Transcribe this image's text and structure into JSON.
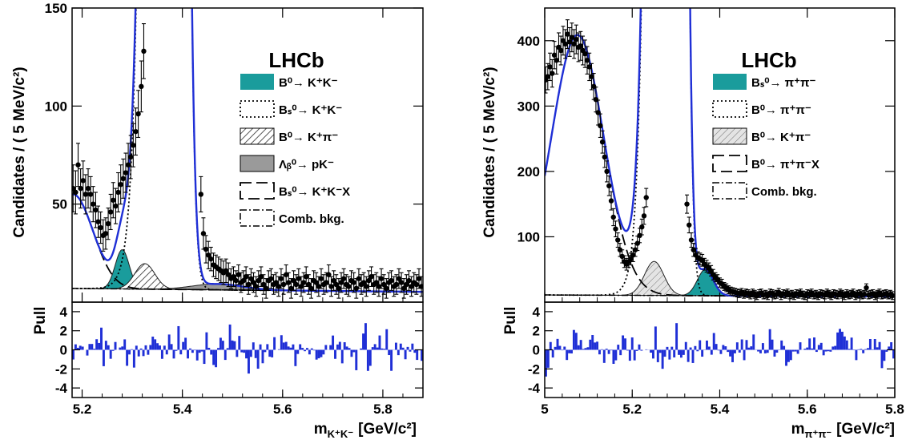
{
  "chart_data": [
    {
      "type": "scatter",
      "brand": "LHCb",
      "ylabel": "Candidates / ( 5 MeV/c²)",
      "xlabel_main": "m",
      "xlabel_sub": "K⁺K⁻",
      "xlabel_unit": "[GeV/c²]",
      "pull_label": "Pull",
      "xlim": [
        5.18,
        5.88
      ],
      "ylim": [
        0,
        150
      ],
      "pull_ylim": [
        -5,
        5
      ],
      "grid": false,
      "legend_position": "right",
      "x_ticks": [
        5.2,
        5.4,
        5.6,
        5.8
      ],
      "x_tick_labels": [
        "5.2",
        "5.4",
        "5.6",
        "5.8"
      ],
      "y_ticks": [
        50,
        100,
        150
      ],
      "y_tick_labels": [
        "50",
        "100",
        "150"
      ],
      "pull_ticks": [
        -4,
        -2,
        0,
        2,
        4
      ],
      "pull_tick_labels": [
        "-4",
        "-2",
        "0",
        "2",
        "4"
      ],
      "legend": [
        {
          "label": "B⁰→ K⁺K⁻",
          "style": "filled",
          "color": "#1a9c9c"
        },
        {
          "label": "Bₛ⁰→ K⁺K⁻",
          "style": "dotted"
        },
        {
          "label": "B⁰→ K⁺π⁻",
          "style": "hatched"
        },
        {
          "label": "Λᵦ⁰→ pK⁻",
          "style": "gray"
        },
        {
          "label": "Bₛ⁰→ K⁺K⁻X",
          "style": "long-dash"
        },
        {
          "label": "Comb. bkg.",
          "style": "dash-dot"
        }
      ],
      "peaks": {
        "bs_kk": 5.367,
        "bd_kk": 5.28,
        "bd_kpi": 5.325,
        "lambda_b": 5.47
      },
      "points": [
        [
          5.182,
          58,
          12
        ],
        [
          5.187,
          56,
          11
        ],
        [
          5.192,
          70,
          11
        ],
        [
          5.197,
          58,
          10
        ],
        [
          5.202,
          62,
          10
        ],
        [
          5.207,
          55,
          10
        ],
        [
          5.212,
          58,
          10
        ],
        [
          5.217,
          55,
          9
        ],
        [
          5.222,
          50,
          9
        ],
        [
          5.227,
          47,
          9
        ],
        [
          5.232,
          41,
          8
        ],
        [
          5.237,
          38,
          8
        ],
        [
          5.242,
          34,
          8
        ],
        [
          5.247,
          35,
          8
        ],
        [
          5.252,
          40,
          8
        ],
        [
          5.257,
          46,
          9
        ],
        [
          5.262,
          52,
          9
        ],
        [
          5.267,
          49,
          9
        ],
        [
          5.272,
          56,
          10
        ],
        [
          5.277,
          60,
          10
        ],
        [
          5.282,
          63,
          10
        ],
        [
          5.287,
          66,
          10
        ],
        [
          5.292,
          70,
          11
        ],
        [
          5.297,
          74,
          11
        ],
        [
          5.302,
          80,
          11
        ],
        [
          5.307,
          87,
          12
        ],
        [
          5.312,
          96,
          12
        ],
        [
          5.318,
          110,
          13
        ],
        [
          5.323,
          128,
          14
        ],
        [
          5.437,
          55,
          9
        ],
        [
          5.442,
          35,
          8
        ],
        [
          5.447,
          27,
          7
        ],
        [
          5.452,
          24,
          7
        ],
        [
          5.457,
          22,
          6
        ],
        [
          5.462,
          19,
          6
        ],
        [
          5.467,
          18,
          6
        ],
        [
          5.472,
          17,
          6
        ],
        [
          5.477,
          16,
          6
        ],
        [
          5.482,
          15,
          6
        ],
        [
          5.487,
          16,
          6
        ],
        [
          5.492,
          14,
          6
        ],
        [
          5.497,
          12,
          5
        ],
        [
          5.502,
          13,
          5
        ],
        [
          5.507,
          11,
          5
        ],
        [
          5.512,
          14,
          5
        ],
        [
          5.517,
          10,
          5
        ],
        [
          5.522,
          11,
          5
        ],
        [
          5.527,
          13,
          5
        ],
        [
          5.532,
          9,
          5
        ],
        [
          5.537,
          12,
          5
        ],
        [
          5.542,
          10,
          5
        ],
        [
          5.547,
          8,
          5
        ],
        [
          5.552,
          11,
          5
        ],
        [
          5.557,
          13,
          5
        ],
        [
          5.562,
          9,
          5
        ],
        [
          5.567,
          7,
          5
        ],
        [
          5.572,
          11,
          5
        ],
        [
          5.577,
          12,
          5
        ],
        [
          5.582,
          9,
          5
        ],
        [
          5.587,
          10,
          5
        ],
        [
          5.592,
          8,
          5
        ],
        [
          5.597,
          12,
          5
        ],
        [
          5.602,
          9,
          5
        ],
        [
          5.607,
          14,
          5
        ],
        [
          5.612,
          10,
          5
        ],
        [
          5.617,
          7,
          5
        ],
        [
          5.622,
          11,
          5
        ],
        [
          5.627,
          9,
          5
        ],
        [
          5.632,
          12,
          5
        ],
        [
          5.637,
          8,
          5
        ],
        [
          5.642,
          10,
          5
        ],
        [
          5.647,
          13,
          5
        ],
        [
          5.652,
          9,
          5
        ],
        [
          5.657,
          7,
          5
        ],
        [
          5.662,
          11,
          5
        ],
        [
          5.667,
          10,
          5
        ],
        [
          5.672,
          8,
          5
        ],
        [
          5.677,
          12,
          5
        ],
        [
          5.682,
          9,
          5
        ],
        [
          5.687,
          10,
          5
        ],
        [
          5.692,
          14,
          5
        ],
        [
          5.697,
          8,
          5
        ],
        [
          5.702,
          11,
          5
        ],
        [
          5.707,
          9,
          5
        ],
        [
          5.712,
          7,
          5
        ],
        [
          5.717,
          10,
          5
        ],
        [
          5.722,
          12,
          5
        ],
        [
          5.727,
          9,
          5
        ],
        [
          5.732,
          8,
          5
        ],
        [
          5.737,
          11,
          5
        ],
        [
          5.742,
          10,
          5
        ],
        [
          5.747,
          7,
          5
        ],
        [
          5.752,
          12,
          5
        ],
        [
          5.757,
          9,
          5
        ],
        [
          5.762,
          10,
          5
        ],
        [
          5.767,
          8,
          5
        ],
        [
          5.772,
          11,
          5
        ],
        [
          5.777,
          13,
          5
        ],
        [
          5.782,
          9,
          5
        ],
        [
          5.787,
          10,
          5
        ],
        [
          5.792,
          8,
          5
        ],
        [
          5.797,
          12,
          5
        ],
        [
          5.802,
          9,
          5
        ],
        [
          5.807,
          7,
          5
        ],
        [
          5.812,
          10,
          5
        ],
        [
          5.817,
          11,
          5
        ],
        [
          5.822,
          8,
          5
        ],
        [
          5.827,
          9,
          5
        ],
        [
          5.832,
          12,
          5
        ],
        [
          5.837,
          10,
          5
        ],
        [
          5.842,
          7,
          5
        ],
        [
          5.847,
          9,
          5
        ],
        [
          5.852,
          11,
          5
        ],
        [
          5.857,
          8,
          5
        ],
        [
          5.862,
          10,
          5
        ],
        [
          5.867,
          9,
          5
        ],
        [
          5.872,
          12,
          5
        ],
        [
          5.877,
          8,
          5
        ]
      ]
    },
    {
      "type": "scatter",
      "brand": "LHCb",
      "ylabel": "Candidates / ( 5 MeV/c²)",
      "xlabel_main": "m",
      "xlabel_sub": "π⁺π⁻",
      "xlabel_unit": "[GeV/c²]",
      "pull_label": "Pull",
      "xlim": [
        5.0,
        5.8
      ],
      "ylim": [
        0,
        450
      ],
      "pull_ylim": [
        -5,
        5
      ],
      "grid": false,
      "legend_position": "right",
      "x_ticks": [
        5.0,
        5.2,
        5.4,
        5.6,
        5.8
      ],
      "x_tick_labels": [
        "5",
        "5.2",
        "5.4",
        "5.6",
        "5.8"
      ],
      "y_ticks": [
        100,
        200,
        300,
        400
      ],
      "y_tick_labels": [
        "100",
        "200",
        "300",
        "400"
      ],
      "pull_ticks": [
        -4,
        -2,
        0,
        2,
        4
      ],
      "pull_tick_labels": [
        "-4",
        "-2",
        "0",
        "2",
        "4"
      ],
      "legend": [
        {
          "label": "Bₛ⁰→ π⁺π⁻",
          "style": "filled",
          "color": "#1a9c9c"
        },
        {
          "label": "B⁰→ π⁺π⁻",
          "style": "dotted"
        },
        {
          "label": "B⁰→ K⁺π⁻",
          "style": "hatched-light"
        },
        {
          "label": "B⁰→ π⁺π⁻X",
          "style": "long-dash"
        },
        {
          "label": "Comb. bkg.",
          "style": "dash-dot"
        }
      ],
      "peaks": {
        "bd_pipi": 5.28,
        "bd_kpi": 5.25,
        "bs_pipi": 5.367
      },
      "points": [
        [
          5.002,
          340,
          20
        ],
        [
          5.007,
          345,
          20
        ],
        [
          5.012,
          360,
          21
        ],
        [
          5.017,
          350,
          21
        ],
        [
          5.022,
          378,
          21
        ],
        [
          5.027,
          370,
          21
        ],
        [
          5.032,
          390,
          22
        ],
        [
          5.037,
          385,
          22
        ],
        [
          5.042,
          400,
          22
        ],
        [
          5.047,
          395,
          22
        ],
        [
          5.052,
          410,
          22
        ],
        [
          5.057,
          398,
          22
        ],
        [
          5.062,
          405,
          22
        ],
        [
          5.067,
          395,
          22
        ],
        [
          5.072,
          402,
          22
        ],
        [
          5.077,
          390,
          22
        ],
        [
          5.082,
          392,
          22
        ],
        [
          5.087,
          385,
          22
        ],
        [
          5.092,
          380,
          21
        ],
        [
          5.097,
          370,
          21
        ],
        [
          5.102,
          360,
          21
        ],
        [
          5.107,
          345,
          20
        ],
        [
          5.112,
          330,
          20
        ],
        [
          5.117,
          310,
          19
        ],
        [
          5.122,
          290,
          19
        ],
        [
          5.127,
          270,
          18
        ],
        [
          5.132,
          245,
          17
        ],
        [
          5.137,
          222,
          16
        ],
        [
          5.142,
          200,
          16
        ],
        [
          5.147,
          178,
          15
        ],
        [
          5.152,
          155,
          14
        ],
        [
          5.157,
          130,
          13
        ],
        [
          5.162,
          112,
          12
        ],
        [
          5.167,
          95,
          11
        ],
        [
          5.172,
          80,
          10
        ],
        [
          5.177,
          70,
          10
        ],
        [
          5.182,
          62,
          9
        ],
        [
          5.187,
          58,
          9
        ],
        [
          5.192,
          62,
          9
        ],
        [
          5.197,
          66,
          9
        ],
        [
          5.202,
          72,
          10
        ],
        [
          5.207,
          80,
          10
        ],
        [
          5.212,
          90,
          11
        ],
        [
          5.217,
          102,
          11
        ],
        [
          5.222,
          115,
          12
        ],
        [
          5.227,
          132,
          13
        ],
        [
          5.232,
          160,
          14
        ],
        [
          5.325,
          150,
          14
        ],
        [
          5.33,
          118,
          12
        ],
        [
          5.335,
          95,
          11
        ],
        [
          5.34,
          80,
          10
        ],
        [
          5.345,
          72,
          10
        ],
        [
          5.35,
          68,
          9
        ],
        [
          5.355,
          66,
          9
        ],
        [
          5.36,
          64,
          9
        ],
        [
          5.365,
          58,
          9
        ],
        [
          5.37,
          55,
          9
        ],
        [
          5.375,
          52,
          8
        ],
        [
          5.38,
          48,
          8
        ],
        [
          5.385,
          42,
          8
        ],
        [
          5.39,
          38,
          7
        ],
        [
          5.395,
          35,
          7
        ],
        [
          5.4,
          30,
          7
        ],
        [
          5.405,
          28,
          7
        ],
        [
          5.41,
          24,
          6
        ],
        [
          5.415,
          22,
          6
        ],
        [
          5.42,
          19,
          6
        ],
        [
          5.425,
          17,
          6
        ],
        [
          5.43,
          16,
          6
        ],
        [
          5.435,
          15,
          6
        ],
        [
          5.44,
          14,
          6
        ],
        [
          5.445,
          13,
          6
        ],
        [
          5.45,
          15,
          6
        ],
        [
          5.455,
          12,
          6
        ],
        [
          5.46,
          14,
          6
        ],
        [
          5.465,
          13,
          6
        ],
        [
          5.47,
          11,
          6
        ],
        [
          5.475,
          14,
          6
        ],
        [
          5.48,
          12,
          6
        ],
        [
          5.485,
          10,
          6
        ],
        [
          5.49,
          13,
          6
        ],
        [
          5.495,
          14,
          6
        ],
        [
          5.5,
          11,
          6
        ],
        [
          5.505,
          12,
          6
        ],
        [
          5.51,
          10,
          6
        ],
        [
          5.515,
          14,
          6
        ],
        [
          5.52,
          13,
          6
        ],
        [
          5.525,
          11,
          6
        ],
        [
          5.53,
          12,
          6
        ],
        [
          5.535,
          15,
          6
        ],
        [
          5.54,
          10,
          6
        ],
        [
          5.545,
          13,
          6
        ],
        [
          5.55,
          12,
          6
        ],
        [
          5.555,
          14,
          6
        ],
        [
          5.56,
          11,
          6
        ],
        [
          5.565,
          12,
          6
        ],
        [
          5.57,
          10,
          6
        ],
        [
          5.575,
          13,
          6
        ],
        [
          5.58,
          12,
          6
        ],
        [
          5.585,
          14,
          6
        ],
        [
          5.59,
          11,
          6
        ],
        [
          5.595,
          10,
          6
        ],
        [
          5.6,
          13,
          6
        ],
        [
          5.605,
          12,
          6
        ],
        [
          5.61,
          14,
          6
        ],
        [
          5.615,
          11,
          6
        ],
        [
          5.62,
          12,
          6
        ],
        [
          5.625,
          10,
          6
        ],
        [
          5.63,
          13,
          6
        ],
        [
          5.635,
          12,
          6
        ],
        [
          5.64,
          11,
          6
        ],
        [
          5.645,
          14,
          6
        ],
        [
          5.65,
          12,
          6
        ],
        [
          5.655,
          10,
          6
        ],
        [
          5.66,
          13,
          6
        ],
        [
          5.665,
          12,
          6
        ],
        [
          5.67,
          11,
          6
        ],
        [
          5.675,
          14,
          6
        ],
        [
          5.68,
          12,
          6
        ],
        [
          5.685,
          10,
          6
        ],
        [
          5.69,
          13,
          6
        ],
        [
          5.695,
          11,
          6
        ],
        [
          5.7,
          12,
          6
        ],
        [
          5.705,
          14,
          6
        ],
        [
          5.71,
          10,
          6
        ],
        [
          5.715,
          12,
          6
        ],
        [
          5.72,
          13,
          6
        ],
        [
          5.725,
          11,
          6
        ],
        [
          5.73,
          12,
          6
        ],
        [
          5.735,
          22,
          6
        ],
        [
          5.74,
          11,
          6
        ],
        [
          5.745,
          12,
          6
        ],
        [
          5.75,
          13,
          6
        ],
        [
          5.755,
          10,
          6
        ],
        [
          5.76,
          12,
          6
        ],
        [
          5.765,
          14,
          6
        ],
        [
          5.77,
          11,
          6
        ],
        [
          5.775,
          12,
          6
        ],
        [
          5.78,
          13,
          6
        ],
        [
          5.785,
          11,
          6
        ],
        [
          5.79,
          12,
          6
        ],
        [
          5.795,
          10,
          6
        ]
      ]
    }
  ]
}
